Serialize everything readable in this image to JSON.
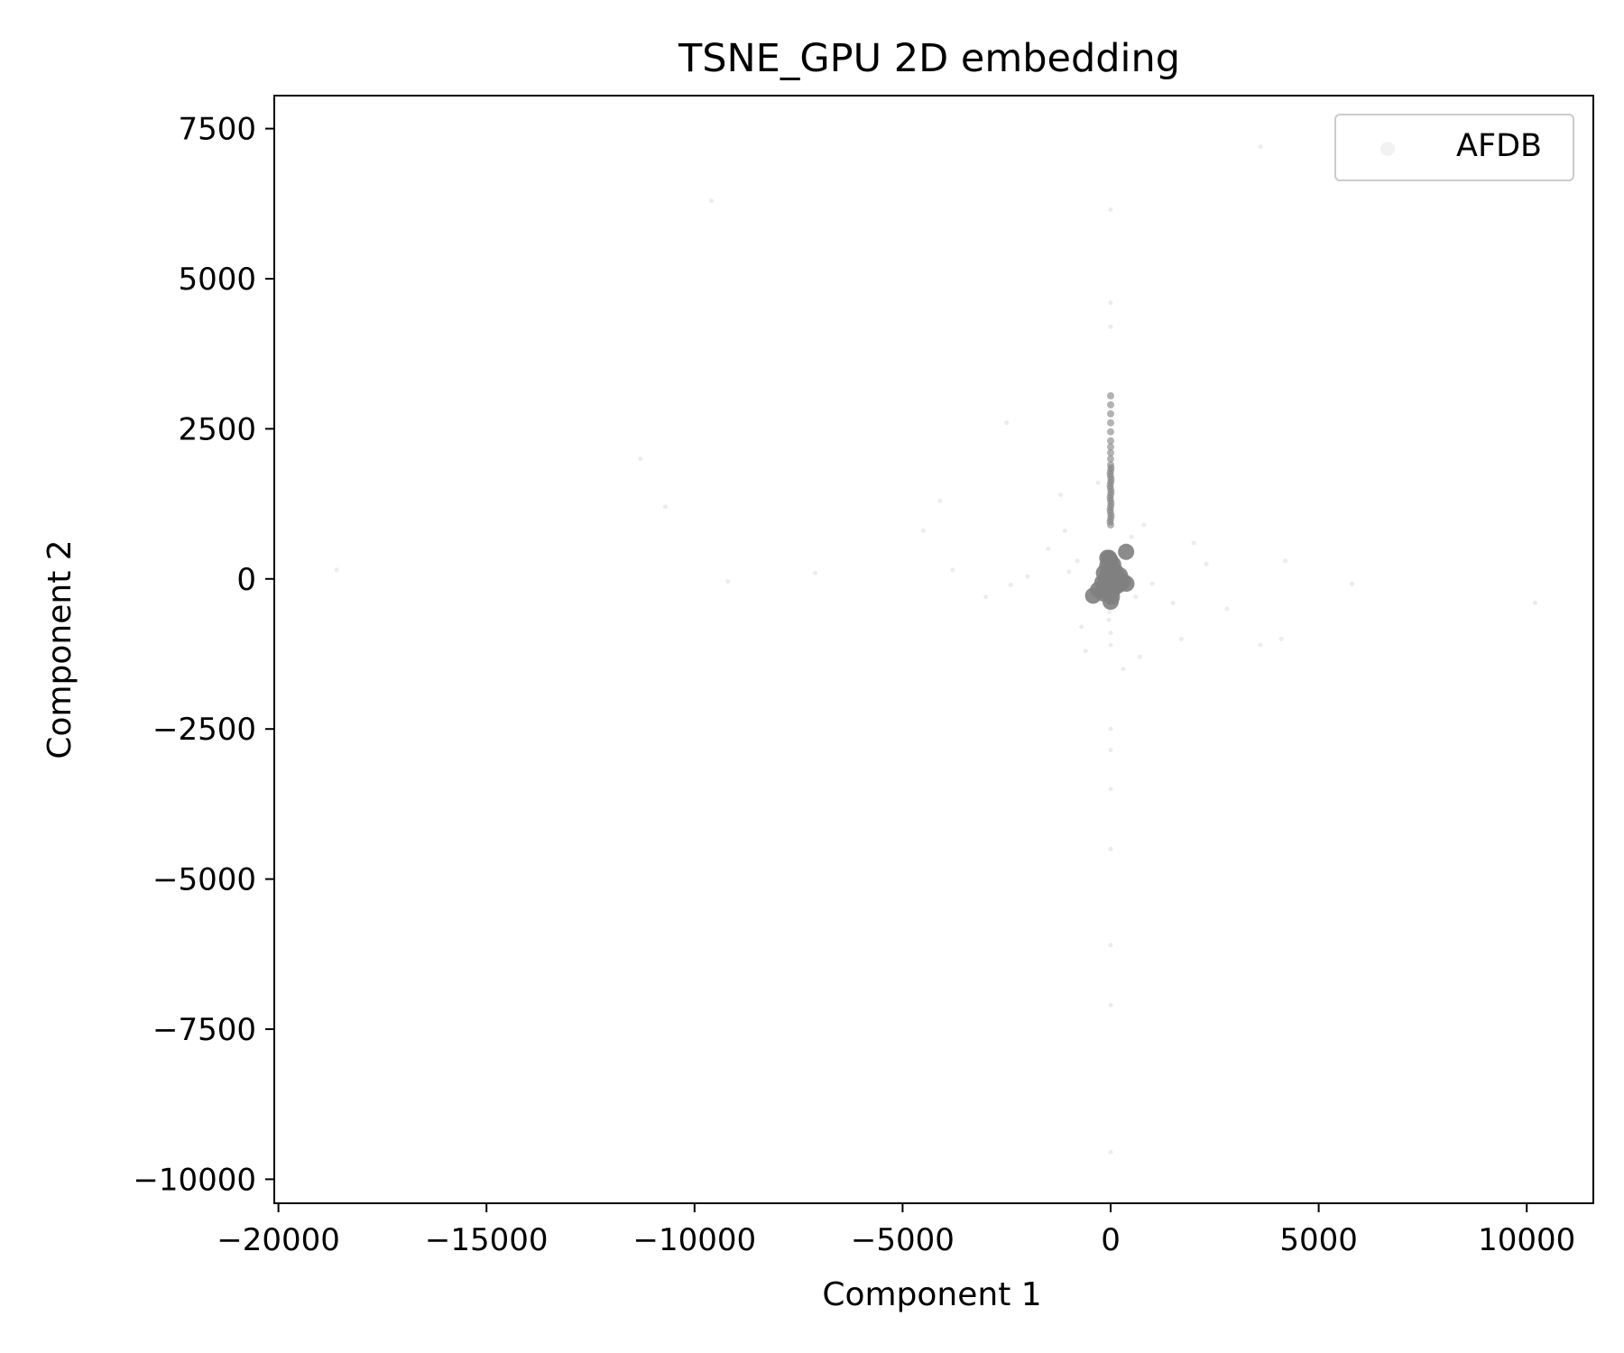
{
  "chart_data": {
    "type": "scatter",
    "title": "TSNE_GPU 2D embedding",
    "xlabel": "Component 1",
    "ylabel": "Component 2",
    "xlim": [
      -20100,
      11600
    ],
    "ylim": [
      -10400,
      8050
    ],
    "xticks": [
      -20000,
      -15000,
      -10000,
      -5000,
      0,
      5000,
      10000
    ],
    "xtick_labels": [
      "−20000",
      "−15000",
      "−10000",
      "−5000",
      "0",
      "5000",
      "10000"
    ],
    "yticks": [
      7500,
      5000,
      2500,
      0,
      -2500,
      -5000,
      -7500,
      -10000
    ],
    "ytick_labels": [
      "7500",
      "5000",
      "2500",
      "0",
      "−2500",
      "−5000",
      "−7500",
      "−10000"
    ],
    "grid": false,
    "legend_position": "upper right",
    "series": [
      {
        "name": "AFDB",
        "color": "#808080",
        "points": [
          [
            0,
            0
          ],
          [
            -60,
            80
          ],
          [
            60,
            -40
          ],
          [
            -40,
            -120
          ],
          [
            100,
            60
          ],
          [
            -120,
            -20
          ],
          [
            40,
            160
          ],
          [
            20,
            -180
          ],
          [
            140,
            -60
          ],
          [
            -80,
            220
          ],
          [
            0,
            300
          ],
          [
            -30,
            -250
          ],
          [
            180,
            20
          ],
          [
            -160,
            100
          ],
          [
            80,
            -160
          ],
          [
            -100,
            -200
          ],
          [
            200,
            -100
          ],
          [
            60,
            240
          ],
          [
            -20,
            120
          ],
          [
            120,
            120
          ],
          [
            -40,
            350
          ],
          [
            30,
            -300
          ],
          [
            220,
            60
          ],
          [
            -200,
            -60
          ],
          [
            0,
            -380
          ],
          [
            300,
            -40
          ],
          [
            380,
            -80
          ],
          [
            -180,
            -240
          ],
          [
            -300,
            -180
          ],
          [
            -420,
            -280
          ],
          [
            -30,
            -550
          ],
          [
            -40,
            -680
          ],
          [
            370,
            450
          ],
          [
            430,
            540
          ],
          [
            -80,
            350
          ],
          [
            0,
            900
          ],
          [
            0,
            1000
          ],
          [
            0,
            1100
          ],
          [
            0,
            1200
          ],
          [
            0,
            1300
          ],
          [
            0,
            1400
          ],
          [
            0,
            1500
          ],
          [
            0,
            1600
          ],
          [
            0,
            1700
          ],
          [
            0,
            1800
          ],
          [
            0,
            1900
          ],
          [
            0,
            2000
          ],
          [
            0,
            2100
          ],
          [
            0,
            2200
          ],
          [
            0,
            2300
          ],
          [
            0,
            2450
          ],
          [
            0,
            2600
          ],
          [
            0,
            2750
          ],
          [
            0,
            2900
          ],
          [
            0,
            3050
          ],
          [
            -10,
            950
          ],
          [
            10,
            1050
          ],
          [
            -10,
            1150
          ],
          [
            10,
            1250
          ],
          [
            -10,
            1350
          ],
          [
            10,
            1450
          ],
          [
            -10,
            1550
          ],
          [
            10,
            1650
          ],
          [
            -10,
            1750
          ],
          [
            10,
            1850
          ],
          [
            0,
            4200
          ],
          [
            0,
            4600
          ],
          [
            0,
            6150
          ],
          [
            0,
            -2850
          ],
          [
            0,
            -2500
          ],
          [
            0,
            -1100
          ],
          [
            0,
            -900
          ],
          [
            0,
            -3500
          ],
          [
            0,
            -4500
          ],
          [
            0,
            -6100
          ],
          [
            0,
            -7100
          ],
          [
            0,
            -9550
          ],
          [
            -1100,
            800
          ],
          [
            -1200,
            1400
          ],
          [
            800,
            900
          ],
          [
            2300,
            250
          ],
          [
            1700,
            -1000
          ],
          [
            1000,
            -80
          ],
          [
            -1000,
            120
          ],
          [
            -2000,
            40
          ],
          [
            -2400,
            -100
          ],
          [
            -4500,
            800
          ],
          [
            -4100,
            1300
          ],
          [
            -10700,
            1200
          ],
          [
            -11300,
            2000
          ],
          [
            -9600,
            6300
          ],
          [
            -18600,
            150
          ],
          [
            -9200,
            -40
          ],
          [
            -7100,
            100
          ],
          [
            -3800,
            150
          ],
          [
            -2500,
            2600
          ],
          [
            3600,
            7200
          ],
          [
            3600,
            -1100
          ],
          [
            4100,
            -1000
          ],
          [
            5800,
            -80
          ],
          [
            10200,
            -400
          ],
          [
            2800,
            -500
          ],
          [
            -1500,
            500
          ],
          [
            1500,
            -400
          ],
          [
            -700,
            -800
          ],
          [
            600,
            -300
          ],
          [
            -800,
            300
          ],
          [
            500,
            700
          ],
          [
            -300,
            1600
          ],
          [
            300,
            -1500
          ],
          [
            -600,
            -1200
          ],
          [
            700,
            -1300
          ],
          [
            2000,
            600
          ],
          [
            -3000,
            -300
          ],
          [
            4200,
            300
          ]
        ]
      }
    ]
  }
}
